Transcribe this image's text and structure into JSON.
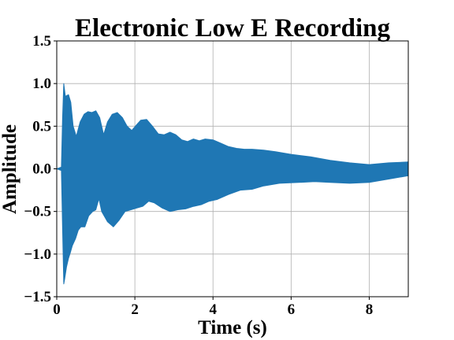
{
  "chart_data": {
    "type": "area",
    "title": "Electronic Low E Recording",
    "xlabel": "Time (s)",
    "ylabel": "Amplitude",
    "xlim": [
      0,
      9
    ],
    "ylim": [
      -1.5,
      1.5
    ],
    "xticks": [
      0,
      2,
      4,
      6,
      8
    ],
    "xtick_labels": [
      "0",
      "2",
      "4",
      "6",
      "8"
    ],
    "yticks": [
      1.5,
      1.0,
      0.5,
      0.0,
      -0.5,
      -1.0,
      -1.5
    ],
    "ytick_labels": [
      "1.5",
      "1.0",
      "0.5",
      "0.0",
      "−0.5",
      "−1.0",
      "−1.5"
    ],
    "grid": true,
    "color": "#1f77b4",
    "series": [
      {
        "upper": {
          "x": [
            0,
            0.12,
            0.15,
            0.18,
            0.22,
            0.3,
            0.36,
            0.42,
            0.5,
            0.6,
            0.7,
            0.8,
            0.9,
            1.0,
            1.1,
            1.2,
            1.3,
            1.42,
            1.55,
            1.68,
            1.8,
            1.92,
            2.05,
            2.15,
            2.3,
            2.45,
            2.6,
            2.75,
            2.9,
            3.05,
            3.2,
            3.35,
            3.5,
            3.65,
            3.8,
            4.0,
            4.2,
            4.4,
            4.6,
            4.8,
            5.0,
            5.3,
            5.6,
            6.0,
            6.5,
            7.0,
            7.5,
            8.0,
            8.5,
            9.0
          ],
          "y": [
            0.0,
            0.02,
            0.6,
            1.0,
            0.85,
            0.87,
            0.78,
            0.5,
            0.38,
            0.55,
            0.64,
            0.67,
            0.66,
            0.68,
            0.6,
            0.4,
            0.55,
            0.64,
            0.66,
            0.6,
            0.5,
            0.45,
            0.52,
            0.57,
            0.58,
            0.5,
            0.41,
            0.4,
            0.43,
            0.4,
            0.34,
            0.32,
            0.35,
            0.33,
            0.35,
            0.34,
            0.3,
            0.26,
            0.24,
            0.23,
            0.23,
            0.22,
            0.2,
            0.17,
            0.14,
            0.1,
            0.07,
            0.05,
            0.07,
            0.08
          ]
        },
        "lower": {
          "x": [
            0,
            0.12,
            0.15,
            0.18,
            0.2,
            0.25,
            0.3,
            0.35,
            0.4,
            0.48,
            0.55,
            0.62,
            0.72,
            0.82,
            0.92,
            1.0,
            1.08,
            1.15,
            1.3,
            1.45,
            1.6,
            1.75,
            1.9,
            2.05,
            2.2,
            2.35,
            2.5,
            2.7,
            2.9,
            3.1,
            3.3,
            3.5,
            3.7,
            3.9,
            4.1,
            4.4,
            4.7,
            5.0,
            5.3,
            5.7,
            6.2,
            6.6,
            7.0,
            7.5,
            8.0,
            8.5,
            9.0
          ],
          "y": [
            0.0,
            -0.02,
            -0.7,
            -1.35,
            -1.3,
            -1.15,
            -1.05,
            -0.98,
            -0.9,
            -0.82,
            -0.72,
            -0.68,
            -0.68,
            -0.55,
            -0.5,
            -0.48,
            -0.35,
            -0.5,
            -0.62,
            -0.68,
            -0.6,
            -0.5,
            -0.48,
            -0.46,
            -0.44,
            -0.38,
            -0.4,
            -0.46,
            -0.5,
            -0.48,
            -0.47,
            -0.44,
            -0.42,
            -0.38,
            -0.36,
            -0.3,
            -0.25,
            -0.24,
            -0.2,
            -0.17,
            -0.16,
            -0.15,
            -0.16,
            -0.17,
            -0.16,
            -0.12,
            -0.08
          ]
        }
      }
    ]
  }
}
